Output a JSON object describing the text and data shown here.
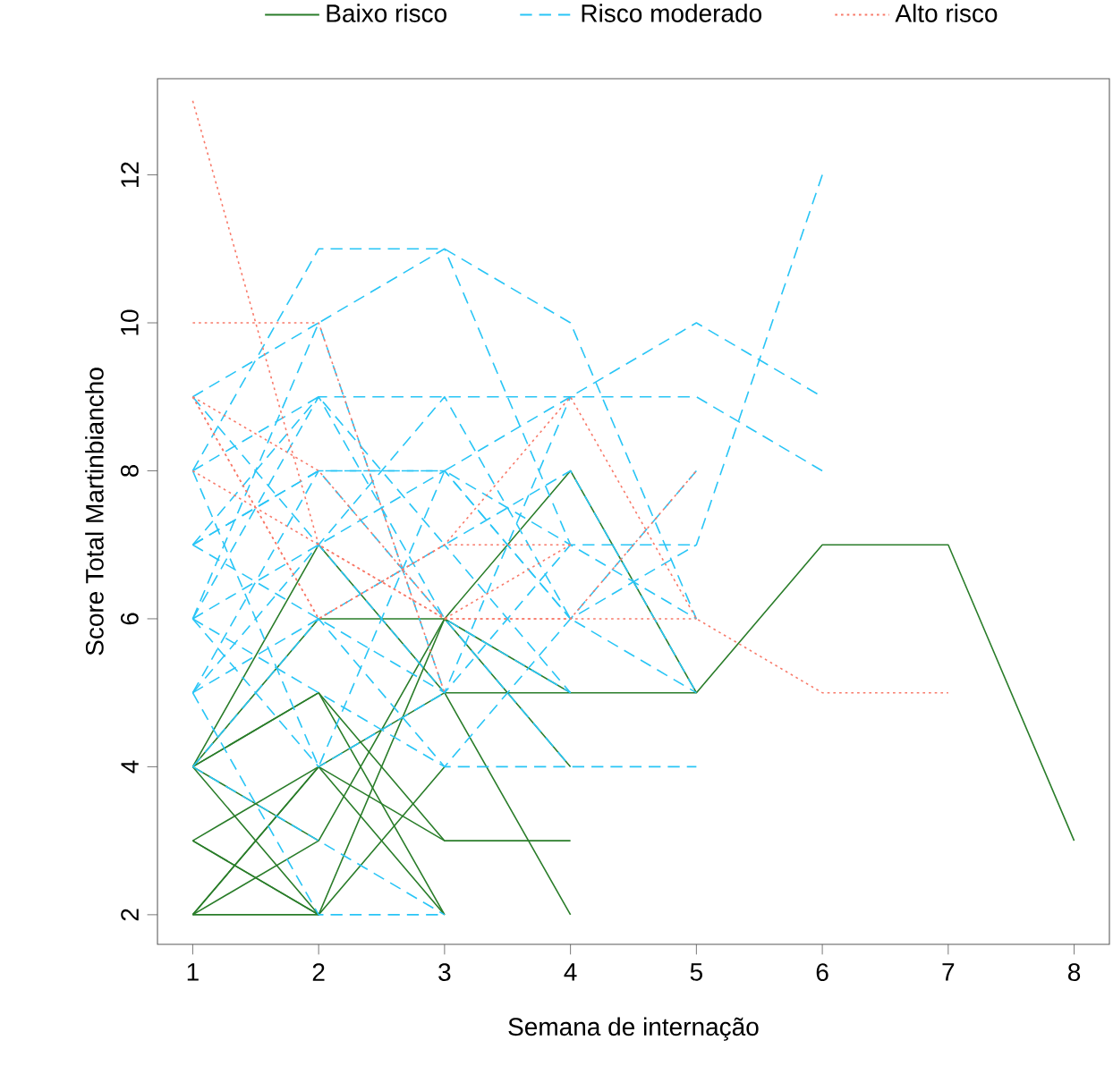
{
  "chart_data": {
    "type": "line",
    "xlabel": "Semana de internação",
    "ylabel": "Score Total Martinbiancho",
    "legend": "top",
    "xlim": [
      0.72,
      8.28
    ],
    "ylim": [
      1.6,
      13.3
    ],
    "xticks": [
      1,
      2,
      3,
      4,
      5,
      6,
      7,
      8
    ],
    "yticks": [
      2,
      4,
      6,
      8,
      10,
      12
    ],
    "series": [
      {
        "name": "Baixo risco",
        "color": "#2a7d2a",
        "line_style": "solid",
        "x": [
          1,
          2,
          3,
          4,
          5,
          6,
          7,
          8
        ],
        "values": [
          4,
          6,
          6,
          8,
          5,
          7,
          7,
          3
        ]
      },
      {
        "color": "#2a7d2a",
        "line_style": "solid",
        "x": [
          1,
          2,
          3,
          4,
          5
        ],
        "values": [
          4,
          7,
          5,
          5,
          5
        ]
      },
      {
        "color": "#2a7d2a",
        "line_style": "solid",
        "x": [
          1,
          2,
          3,
          4
        ],
        "values": [
          4,
          5,
          3,
          3
        ]
      },
      {
        "color": "#2a7d2a",
        "line_style": "solid",
        "x": [
          1,
          2,
          3,
          4
        ],
        "values": [
          2,
          3,
          6,
          4
        ]
      },
      {
        "color": "#2a7d2a",
        "line_style": "solid",
        "x": [
          1,
          2,
          3,
          4
        ],
        "values": [
          2,
          4,
          5,
          2
        ]
      },
      {
        "color": "#2a7d2a",
        "line_style": "solid",
        "x": [
          1,
          2,
          3
        ],
        "values": [
          4,
          2,
          4
        ]
      },
      {
        "color": "#2a7d2a",
        "line_style": "solid",
        "x": [
          1,
          2,
          3,
          4
        ],
        "values": [
          3,
          2,
          6,
          5
        ]
      },
      {
        "color": "#2a7d2a",
        "line_style": "solid",
        "x": [
          1,
          2,
          3
        ],
        "values": [
          3,
          4,
          3
        ]
      },
      {
        "color": "#2a7d2a",
        "line_style": "solid",
        "x": [
          1,
          2,
          3
        ],
        "values": [
          2,
          4,
          2
        ]
      },
      {
        "color": "#2a7d2a",
        "line_style": "solid",
        "x": [
          1,
          2,
          3
        ],
        "values": [
          4,
          5,
          2
        ]
      },
      {
        "color": "#2a7d2a",
        "line_style": "solid",
        "x": [
          1,
          2
        ],
        "values": [
          4,
          3
        ]
      },
      {
        "color": "#2a7d2a",
        "line_style": "solid",
        "x": [
          1,
          2
        ],
        "values": [
          3,
          2
        ]
      },
      {
        "color": "#2a7d2a",
        "line_style": "solid",
        "x": [
          1,
          2
        ],
        "values": [
          2,
          2
        ]
      },
      {
        "name": "Risco moderado",
        "color": "#29c5f6",
        "line_style": "dashed",
        "x": [
          1,
          2,
          3,
          4,
          5
        ],
        "values": [
          8,
          11,
          11,
          10,
          6
        ]
      },
      {
        "color": "#29c5f6",
        "line_style": "dashed",
        "x": [
          1,
          2,
          3,
          4
        ],
        "values": [
          6,
          10,
          11,
          7
        ]
      },
      {
        "color": "#29c5f6",
        "line_style": "dashed",
        "x": [
          1,
          2,
          3,
          4,
          5,
          6
        ],
        "values": [
          7,
          9,
          9,
          9,
          9,
          8
        ]
      },
      {
        "color": "#29c5f6",
        "line_style": "dashed",
        "x": [
          1,
          2,
          3,
          4,
          5,
          6
        ],
        "values": [
          5,
          8,
          8,
          9,
          10,
          9
        ]
      },
      {
        "color": "#29c5f6",
        "line_style": "dashed",
        "x": [
          1,
          2,
          3,
          4,
          5,
          6
        ],
        "values": [
          6,
          7,
          8,
          6,
          7,
          12
        ]
      },
      {
        "color": "#29c5f6",
        "line_style": "dashed",
        "x": [
          1,
          2,
          3,
          4,
          5
        ],
        "values": [
          8,
          9,
          7,
          8,
          5
        ]
      },
      {
        "color": "#29c5f6",
        "line_style": "dashed",
        "x": [
          1,
          2,
          3,
          4
        ],
        "values": [
          7,
          8,
          6,
          4
        ]
      },
      {
        "color": "#29c5f6",
        "line_style": "dashed",
        "x": [
          1,
          2,
          3,
          4,
          5
        ],
        "values": [
          5,
          6,
          5,
          7,
          6
        ]
      },
      {
        "color": "#29c5f6",
        "line_style": "dashed",
        "x": [
          1,
          2,
          3,
          4,
          5
        ],
        "values": [
          9,
          7,
          9,
          6,
          5
        ]
      },
      {
        "color": "#29c5f6",
        "line_style": "dashed",
        "x": [
          1,
          2,
          3,
          4,
          5
        ],
        "values": [
          6,
          5,
          4,
          4,
          4
        ]
      },
      {
        "color": "#29c5f6",
        "line_style": "dashed",
        "x": [
          1,
          2,
          3
        ],
        "values": [
          4,
          3,
          2
        ]
      },
      {
        "color": "#29c5f6",
        "line_style": "dashed",
        "x": [
          1,
          2,
          3
        ],
        "values": [
          5,
          2,
          2
        ]
      },
      {
        "color": "#29c5f6",
        "line_style": "dashed",
        "x": [
          1,
          2,
          3,
          4
        ],
        "values": [
          7,
          6,
          7,
          5
        ]
      },
      {
        "color": "#29c5f6",
        "line_style": "dashed",
        "x": [
          1,
          2,
          3,
          4,
          5
        ],
        "values": [
          8,
          4,
          8,
          7,
          7
        ]
      },
      {
        "color": "#29c5f6",
        "line_style": "dashed",
        "x": [
          1,
          2,
          3,
          4
        ],
        "values": [
          6,
          9,
          6,
          5
        ]
      },
      {
        "color": "#29c5f6",
        "line_style": "dashed",
        "x": [
          1,
          2,
          3
        ],
        "values": [
          9,
          10,
          5
        ]
      },
      {
        "color": "#29c5f6",
        "line_style": "dashed",
        "x": [
          1,
          2,
          3,
          4
        ],
        "values": [
          5,
          7,
          5,
          9
        ]
      },
      {
        "color": "#29c5f6",
        "line_style": "dashed",
        "x": [
          1,
          2,
          3,
          4,
          5
        ],
        "values": [
          7,
          8,
          8,
          6,
          8
        ]
      },
      {
        "color": "#29c5f6",
        "line_style": "dashed",
        "x": [
          1,
          2,
          3,
          4
        ],
        "values": [
          4,
          6,
          4,
          6
        ]
      },
      {
        "color": "#29c5f6",
        "line_style": "dashed",
        "x": [
          1,
          2,
          3
        ],
        "values": [
          6,
          4,
          5
        ]
      },
      {
        "name": "Alto risco",
        "color": "#f87a6a",
        "line_style": "dotted",
        "x": [
          1,
          2,
          3,
          4
        ],
        "values": [
          13,
          7,
          6,
          7
        ]
      },
      {
        "color": "#f87a6a",
        "line_style": "dotted",
        "x": [
          1,
          2,
          3
        ],
        "values": [
          10,
          10,
          5
        ]
      },
      {
        "color": "#f87a6a",
        "line_style": "dotted",
        "x": [
          1,
          2,
          3,
          4,
          5
        ],
        "values": [
          9,
          8,
          6,
          6,
          6
        ]
      },
      {
        "color": "#f87a6a",
        "line_style": "dotted",
        "x": [
          1,
          2,
          3,
          4,
          5,
          6,
          7
        ],
        "values": [
          9,
          6,
          7,
          9,
          6,
          5,
          5
        ]
      },
      {
        "color": "#f87a6a",
        "line_style": "dotted",
        "x": [
          1,
          2,
          3,
          4,
          5
        ],
        "values": [
          8,
          7,
          6,
          6,
          8
        ]
      },
      {
        "color": "#f87a6a",
        "line_style": "dotted",
        "x": [
          1,
          2,
          3,
          4
        ],
        "values": [
          9,
          6,
          7,
          7
        ]
      }
    ]
  }
}
